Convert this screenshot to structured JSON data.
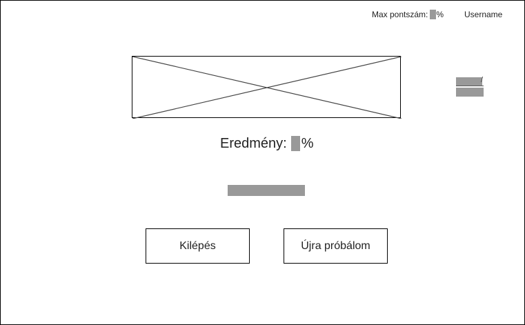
{
  "header": {
    "max_score_label": "Max pontszám:",
    "max_score_unit": "%",
    "username": "Username"
  },
  "image_placeholder": {
    "icon": "image-placeholder-cross"
  },
  "side_widget": {
    "separator": "/"
  },
  "result": {
    "label": "Eredmény:",
    "unit": "%"
  },
  "buttons": {
    "exit_label": "Kilépés",
    "retry_label": "Újra próbálom"
  },
  "colors": {
    "placeholder_fill": "#999999",
    "border": "#000000",
    "background": "#ffffff"
  }
}
